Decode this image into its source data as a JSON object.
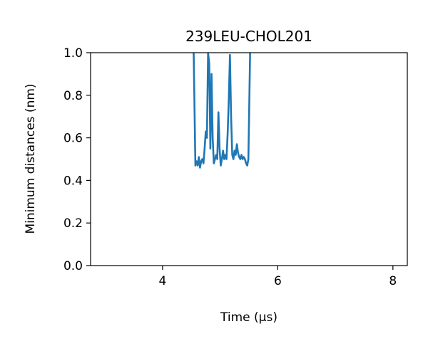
{
  "chart_data": {
    "type": "line",
    "title": "239LEU-CHOL201",
    "xlabel": "Time (μs)",
    "ylabel": "Minimum distances (nm)",
    "xlim": [
      2.75,
      8.25
    ],
    "ylim": [
      0.0,
      1.0
    ],
    "xticks": [
      4,
      6,
      8
    ],
    "xtick_labels": [
      "4",
      "6",
      "8"
    ],
    "yticks": [
      0.0,
      0.2,
      0.4,
      0.6,
      0.8,
      1.0
    ],
    "ytick_labels": [
      "0.0",
      "0.2",
      "0.4",
      "0.6",
      "0.8",
      "1.0"
    ],
    "grid": false,
    "series": [
      {
        "color": "#1f77b4",
        "x": [
          4.54,
          4.57,
          4.59,
          4.61,
          4.63,
          4.65,
          4.67,
          4.69,
          4.71,
          4.73,
          4.75,
          4.77,
          4.79,
          4.81,
          4.83,
          4.85,
          4.87,
          4.89,
          4.91,
          4.93,
          4.95,
          4.97,
          4.99,
          5.01,
          5.03,
          5.05,
          5.07,
          5.09,
          5.11,
          5.13,
          5.15,
          5.17,
          5.19,
          5.21,
          5.23,
          5.25,
          5.27,
          5.29,
          5.31,
          5.33,
          5.35,
          5.37,
          5.39,
          5.41,
          5.43,
          5.45,
          5.47,
          5.49,
          5.52
        ],
        "y": [
          1.0,
          0.47,
          0.49,
          0.47,
          0.51,
          0.46,
          0.49,
          0.5,
          0.48,
          0.55,
          0.63,
          0.6,
          1.0,
          0.95,
          0.55,
          0.9,
          0.6,
          0.48,
          0.5,
          0.52,
          0.5,
          0.72,
          0.55,
          0.47,
          0.5,
          0.54,
          0.5,
          0.52,
          0.5,
          0.62,
          0.78,
          0.99,
          0.7,
          0.52,
          0.5,
          0.54,
          0.52,
          0.57,
          0.53,
          0.51,
          0.5,
          0.52,
          0.5,
          0.51,
          0.5,
          0.48,
          0.47,
          0.5,
          1.0
        ]
      }
    ]
  }
}
